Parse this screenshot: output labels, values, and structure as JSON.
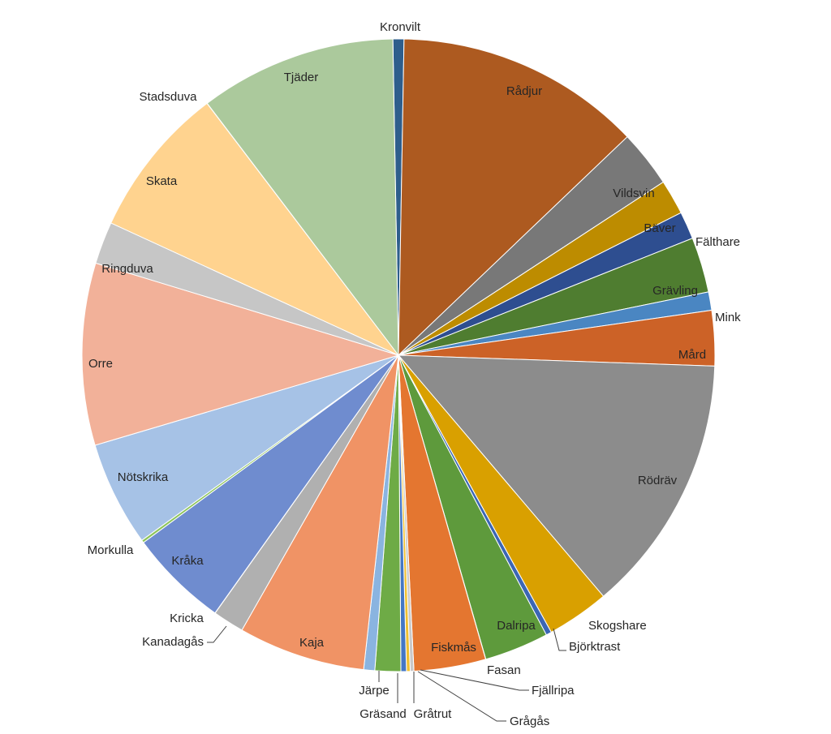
{
  "chart_data": {
    "type": "pie",
    "title": "",
    "legend": "none",
    "slices": [
      {
        "label": "Kronvilt",
        "value": 0.6,
        "color": "#2e5e8c"
      },
      {
        "label": "Rådjur",
        "value": 13.4,
        "color": "#ad5a20"
      },
      {
        "label": "Vildsvin",
        "value": 3.1,
        "color": "#787878"
      },
      {
        "label": "Bäver",
        "value": 1.9,
        "color": "#bd8c00"
      },
      {
        "label": "Fälthare",
        "value": 1.5,
        "color": "#2e4e90"
      },
      {
        "label": "Grävling",
        "value": 3.0,
        "color": "#4f7d30"
      },
      {
        "label": "Mink",
        "value": 1.0,
        "color": "#4a86c2"
      },
      {
        "label": "Mård",
        "value": 3.0,
        "color": "#cc6227"
      },
      {
        "label": "Rödräv",
        "value": 14.1,
        "color": "#8c8c8c"
      },
      {
        "label": "Skogshare",
        "value": 3.4,
        "color": "#d9a000"
      },
      {
        "label": "Björktrast",
        "value": 0.3,
        "color": "#3b66b5"
      },
      {
        "label": "Dalripa",
        "value": 3.5,
        "color": "#5e9a3c"
      },
      {
        "label": "Fasan",
        "value": 0.01,
        "color": "#ea8040"
      },
      {
        "label": "Fiskmås",
        "value": 3.9,
        "color": "#e47630"
      },
      {
        "label": "Fjällripa",
        "value": 0.2,
        "color": "#c9c9c9"
      },
      {
        "label": "Grågås",
        "value": 0.2,
        "color": "#f0c030"
      },
      {
        "label": "Gråtrut",
        "value": 0.3,
        "color": "#4477c4"
      },
      {
        "label": "Gräsand",
        "value": 1.4,
        "color": "#6eab46"
      },
      {
        "label": "Järpe",
        "value": 0.6,
        "color": "#8ab4e0"
      },
      {
        "label": "Kaja",
        "value": 6.9,
        "color": "#f09365"
      },
      {
        "label": "Kanadagås",
        "value": 1.7,
        "color": "#b0b0b0"
      },
      {
        "label": "Kricka",
        "value": 0.01,
        "color": "#f5c38a"
      },
      {
        "label": "Kråka",
        "value": 5.4,
        "color": "#6f8ccf"
      },
      {
        "label": "Morkulla",
        "value": 0.15,
        "color": "#8cc45a"
      },
      {
        "label": "Nötskrika",
        "value": 5.7,
        "color": "#a6c2e6"
      },
      {
        "label": "Orre",
        "value": 9.9,
        "color": "#f2b199"
      },
      {
        "label": "Ringduva",
        "value": 2.3,
        "color": "#c6c6c6"
      },
      {
        "label": "Skata",
        "value": 8.3,
        "color": "#ffd38f"
      },
      {
        "label": "Stadsduva",
        "value": 0.01,
        "color": "#ffe2a8"
      },
      {
        "label": "Tjäder",
        "value": 10.7,
        "color": "#abc99c"
      }
    ]
  }
}
